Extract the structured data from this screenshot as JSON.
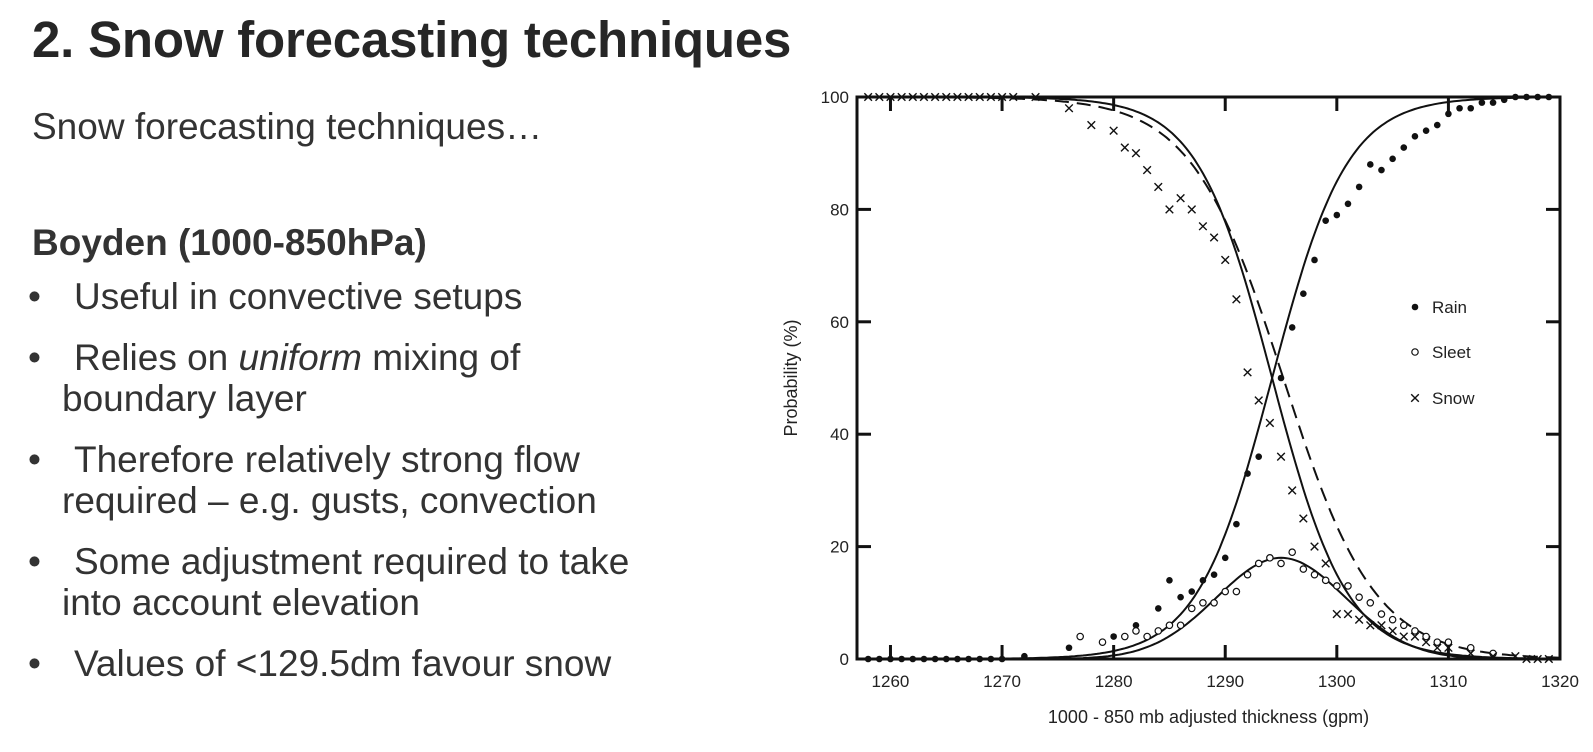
{
  "slide": {
    "title": "2. Snow forecasting techniques",
    "intro": "Snow forecasting techniques…",
    "subheading": "Boyden (1000-850hPa)",
    "bullet_symbol": "•",
    "bullets": [
      {
        "line1": "Useful in convective setups",
        "line2": ""
      },
      {
        "line1_pre": "Relies on ",
        "line1_em": "uniform",
        "line1_post": " mixing of",
        "line2": "boundary layer"
      },
      {
        "line1": "Therefore relatively strong flow",
        "line2": "required – e.g. gusts, convection"
      },
      {
        "line1": "Some adjustment required to take",
        "line2": "into account elevation"
      },
      {
        "line1": "Values of <129.5dm favour snow",
        "line2": ""
      }
    ]
  },
  "chart_data": {
    "type": "scatter",
    "xlabel": "1000 - 850 mb adjusted thickness (gpm)",
    "ylabel": "Probability (%)",
    "xlim": [
      1257,
      1320
    ],
    "ylim": [
      0,
      100
    ],
    "xticks": [
      1260,
      1270,
      1280,
      1290,
      1300,
      1310,
      1320
    ],
    "yticks": [
      0,
      20,
      40,
      60,
      80,
      100
    ],
    "legend_position": "right",
    "series": [
      {
        "name": "Rain",
        "marker": "dot",
        "points": [
          [
            1258,
            0
          ],
          [
            1259,
            0
          ],
          [
            1260,
            0
          ],
          [
            1261,
            0
          ],
          [
            1262,
            0
          ],
          [
            1263,
            0
          ],
          [
            1264,
            0
          ],
          [
            1265,
            0
          ],
          [
            1266,
            0
          ],
          [
            1267,
            0
          ],
          [
            1268,
            0
          ],
          [
            1269,
            0
          ],
          [
            1270,
            0
          ],
          [
            1272,
            0.5
          ],
          [
            1276,
            2
          ],
          [
            1280,
            4
          ],
          [
            1282,
            6
          ],
          [
            1284,
            9
          ],
          [
            1285,
            14
          ],
          [
            1286,
            11
          ],
          [
            1287,
            12
          ],
          [
            1288,
            14
          ],
          [
            1289,
            15
          ],
          [
            1290,
            18
          ],
          [
            1291,
            24
          ],
          [
            1292,
            33
          ],
          [
            1293,
            36
          ],
          [
            1295,
            50
          ],
          [
            1296,
            59
          ],
          [
            1297,
            65
          ],
          [
            1298,
            71
          ],
          [
            1299,
            78
          ],
          [
            1300,
            79
          ],
          [
            1301,
            81
          ],
          [
            1302,
            84
          ],
          [
            1303,
            88
          ],
          [
            1304,
            87
          ],
          [
            1305,
            89
          ],
          [
            1306,
            91
          ],
          [
            1307,
            93
          ],
          [
            1308,
            94
          ],
          [
            1309,
            95
          ],
          [
            1310,
            97
          ],
          [
            1311,
            98
          ],
          [
            1312,
            98
          ],
          [
            1313,
            99
          ],
          [
            1314,
            99
          ],
          [
            1315,
            99.5
          ],
          [
            1316,
            100
          ],
          [
            1317,
            100
          ],
          [
            1318,
            100
          ],
          [
            1319,
            100
          ]
        ]
      },
      {
        "name": "Sleet",
        "marker": "circle",
        "points": [
          [
            1277,
            4
          ],
          [
            1279,
            3
          ],
          [
            1281,
            4
          ],
          [
            1282,
            5
          ],
          [
            1283,
            4
          ],
          [
            1284,
            5
          ],
          [
            1285,
            6
          ],
          [
            1286,
            6
          ],
          [
            1287,
            9
          ],
          [
            1288,
            10
          ],
          [
            1289,
            10
          ],
          [
            1290,
            12
          ],
          [
            1291,
            12
          ],
          [
            1292,
            15
          ],
          [
            1293,
            17
          ],
          [
            1294,
            18
          ],
          [
            1295,
            17
          ],
          [
            1296,
            19
          ],
          [
            1297,
            16
          ],
          [
            1298,
            15
          ],
          [
            1299,
            14
          ],
          [
            1300,
            13
          ],
          [
            1301,
            13
          ],
          [
            1302,
            11
          ],
          [
            1303,
            10
          ],
          [
            1304,
            8
          ],
          [
            1305,
            7
          ],
          [
            1306,
            6
          ],
          [
            1307,
            5
          ],
          [
            1308,
            4
          ],
          [
            1309,
            3
          ],
          [
            1310,
            3
          ],
          [
            1312,
            2
          ],
          [
            1314,
            1
          ]
        ]
      },
      {
        "name": "Snow",
        "marker": "cross",
        "points": [
          [
            1258,
            100
          ],
          [
            1259,
            100
          ],
          [
            1260,
            100
          ],
          [
            1261,
            100
          ],
          [
            1262,
            100
          ],
          [
            1263,
            100
          ],
          [
            1264,
            100
          ],
          [
            1265,
            100
          ],
          [
            1266,
            100
          ],
          [
            1267,
            100
          ],
          [
            1268,
            100
          ],
          [
            1269,
            100
          ],
          [
            1270,
            100
          ],
          [
            1271,
            100
          ],
          [
            1273,
            100
          ],
          [
            1276,
            98
          ],
          [
            1278,
            95
          ],
          [
            1280,
            94
          ],
          [
            1281,
            91
          ],
          [
            1282,
            90
          ],
          [
            1283,
            87
          ],
          [
            1284,
            84
          ],
          [
            1285,
            80
          ],
          [
            1286,
            82
          ],
          [
            1287,
            80
          ],
          [
            1288,
            77
          ],
          [
            1289,
            75
          ],
          [
            1290,
            71
          ],
          [
            1291,
            64
          ],
          [
            1292,
            51
          ],
          [
            1293,
            46
          ],
          [
            1294,
            42
          ],
          [
            1295,
            36
          ],
          [
            1296,
            30
          ],
          [
            1297,
            25
          ],
          [
            1298,
            20
          ],
          [
            1299,
            17
          ],
          [
            1300,
            8
          ],
          [
            1301,
            8
          ],
          [
            1302,
            7
          ],
          [
            1303,
            6
          ],
          [
            1304,
            6
          ],
          [
            1305,
            5
          ],
          [
            1306,
            4
          ],
          [
            1307,
            4
          ],
          [
            1308,
            3
          ],
          [
            1309,
            2
          ],
          [
            1310,
            2
          ],
          [
            1312,
            1
          ],
          [
            1314,
            0.5
          ],
          [
            1316,
            0.5
          ],
          [
            1317,
            0
          ],
          [
            1318,
            0
          ],
          [
            1319,
            0
          ]
        ]
      }
    ],
    "curves": [
      {
        "name": "Rain fit",
        "style": "solid"
      },
      {
        "name": "Snow fit",
        "style": "solid"
      },
      {
        "name": "Snow fit (adjusted)",
        "style": "dashed"
      },
      {
        "name": "Sleet fit",
        "style": "solid"
      }
    ]
  }
}
